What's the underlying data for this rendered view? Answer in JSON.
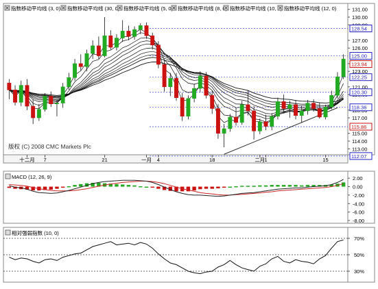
{
  "legend": [
    {
      "label": "指数移动平均线 (3, 0)",
      "color": "#000000"
    },
    {
      "label": "指数移动平均线 (30, 0)",
      "color": "#000000"
    },
    {
      "label": "指数移动平均线 (5, 0)",
      "color": "#000000"
    },
    {
      "label": "指数移动平均线 (8, 0)",
      "color": "#000000"
    },
    {
      "label": "指数移动平均线 (10, 0)",
      "color": "#000000"
    },
    {
      "label": "指数移动平均线 (12, 0)",
      "color": "#000000"
    }
  ],
  "copyright": "版权 (C) 2008 CMC Markets Plc",
  "colors": {
    "up": "#22aa22",
    "down": "#cc1111",
    "grid": "#4444ee",
    "macd_line": "#222222",
    "signal_line": "#cc2222",
    "trend": "#333333"
  },
  "chart_data": [
    {
      "type": "candlestick",
      "ylim": [
        112.5,
        131.5
      ],
      "y_ticks": [
        "113.00",
        "114.00",
        "115.00",
        "117.00",
        "118.00",
        "120.00",
        "121.00",
        "123.00",
        "124.00",
        "126.00",
        "127.00",
        "129.00",
        "130.00",
        "131.00"
      ],
      "y_tick_values": [
        113,
        114,
        115,
        117,
        118,
        120,
        121,
        123,
        124,
        126,
        127,
        129,
        130,
        131
      ],
      "price_tags": [
        {
          "label": "128.54",
          "value": 128.54,
          "color": "#2222cc"
        },
        {
          "label": "125.00",
          "value": 125.0,
          "color": "#2222cc"
        },
        {
          "label": "123.94",
          "value": 123.94,
          "color": "#cc1111"
        },
        {
          "label": "122.25",
          "value": 122.25,
          "color": "#2222cc"
        },
        {
          "label": "120.30",
          "value": 120.3,
          "color": "#2222cc"
        },
        {
          "label": "118.36",
          "value": 118.36,
          "color": "#2222cc"
        },
        {
          "label": "115.86",
          "value": 115.86,
          "color": "#cc1111"
        },
        {
          "label": "112.07",
          "value": 112.07,
          "color": "#2222cc"
        }
      ],
      "grid_levels": [
        128.54,
        125.0,
        122.25,
        120.3,
        118.36,
        115.86,
        112.07
      ],
      "x_ticks": [
        {
          "label": "十二月",
          "index": 3
        },
        {
          "label": "7",
          "index": 6
        },
        {
          "label": "21",
          "index": 16
        },
        {
          "label": "一月",
          "index": 23
        },
        {
          "label": "4",
          "index": 25
        },
        {
          "label": "18",
          "index": 34
        },
        {
          "label": "二月",
          "index": 42
        },
        {
          "label": "1",
          "index": 43
        },
        {
          "label": "15",
          "index": 53
        }
      ],
      "candles": [
        [
          121.5,
          122.0,
          119.4,
          120.6
        ],
        [
          120.6,
          121.2,
          118.6,
          119.0
        ],
        [
          119.0,
          121.8,
          118.5,
          121.2
        ],
        [
          121.2,
          122.0,
          118.0,
          118.5
        ],
        [
          118.5,
          119.4,
          116.2,
          117.0
        ],
        [
          117.0,
          118.8,
          116.6,
          118.1
        ],
        [
          118.1,
          120.2,
          117.8,
          119.8
        ],
        [
          119.8,
          120.4,
          118.4,
          118.8
        ],
        [
          118.8,
          119.3,
          117.2,
          118.9
        ],
        [
          118.9,
          121.5,
          118.3,
          121.0
        ],
        [
          121.0,
          122.8,
          120.6,
          122.2
        ],
        [
          122.2,
          124.6,
          121.8,
          124.0
        ],
        [
          124.0,
          125.2,
          123.1,
          123.6
        ],
        [
          123.6,
          125.8,
          123.0,
          125.3
        ],
        [
          125.3,
          127.0,
          124.6,
          126.3
        ],
        [
          126.3,
          127.5,
          124.6,
          125.0
        ],
        [
          125.0,
          130.0,
          124.8,
          127.6
        ],
        [
          127.6,
          128.3,
          125.8,
          126.1
        ],
        [
          126.1,
          127.8,
          125.7,
          127.3
        ],
        [
          127.3,
          129.6,
          126.8,
          128.2
        ],
        [
          128.2,
          128.9,
          127.0,
          127.5
        ],
        [
          127.5,
          128.8,
          127.1,
          128.4
        ],
        [
          128.4,
          129.2,
          127.8,
          128.9
        ],
        [
          128.9,
          129.3,
          127.2,
          127.6
        ],
        [
          127.6,
          128.0,
          125.8,
          126.4
        ],
        [
          126.4,
          126.9,
          123.4,
          123.9
        ],
        [
          123.9,
          124.5,
          120.4,
          121.0
        ],
        [
          121.0,
          122.8,
          119.8,
          122.1
        ],
        [
          122.1,
          122.8,
          119.2,
          119.6
        ],
        [
          119.6,
          120.2,
          116.6,
          117.2
        ],
        [
          117.2,
          119.9,
          116.8,
          119.5
        ],
        [
          119.5,
          121.4,
          119.0,
          120.8
        ],
        [
          120.8,
          123.0,
          120.3,
          122.4
        ],
        [
          122.4,
          122.9,
          119.5,
          119.9
        ],
        [
          119.9,
          120.5,
          117.5,
          118.2
        ],
        [
          118.2,
          118.8,
          114.3,
          115.0
        ],
        [
          115.0,
          116.2,
          113.2,
          115.6
        ],
        [
          115.6,
          117.5,
          115.2,
          117.1
        ],
        [
          117.1,
          118.3,
          116.0,
          116.4
        ],
        [
          116.4,
          119.2,
          116.1,
          118.7
        ],
        [
          118.7,
          120.5,
          117.3,
          117.9
        ],
        [
          117.9,
          118.5,
          114.2,
          115.3
        ],
        [
          115.3,
          116.9,
          114.9,
          116.5
        ],
        [
          116.5,
          117.4,
          115.4,
          115.9
        ],
        [
          115.9,
          117.6,
          115.4,
          117.2
        ],
        [
          117.2,
          119.6,
          116.8,
          119.1
        ],
        [
          119.1,
          120.0,
          117.6,
          118.2
        ],
        [
          118.2,
          119.2,
          117.0,
          118.7
        ],
        [
          118.7,
          119.3,
          116.8,
          117.3
        ],
        [
          117.3,
          118.6,
          116.4,
          117.9
        ],
        [
          117.9,
          119.3,
          117.4,
          118.9
        ],
        [
          118.9,
          119.4,
          117.8,
          118.2
        ],
        [
          118.2,
          118.9,
          116.9,
          117.1
        ],
        [
          117.1,
          118.7,
          116.8,
          118.4
        ],
        [
          118.4,
          120.5,
          118.1,
          119.9
        ],
        [
          119.9,
          122.9,
          119.5,
          122.3
        ],
        [
          122.3,
          125.2,
          122.0,
          124.6
        ]
      ],
      "trendline": {
        "from_index": 36,
        "from_value": 112.3,
        "to_index": 55,
        "to_value": 118.3
      }
    },
    {
      "type": "macd",
      "legend": "MACD (12, 26, 9)",
      "ylim": [
        -8.0,
        3.0
      ],
      "y_ticks": [
        "2.00",
        "0.00",
        "-2.00",
        "-4.00",
        "-6.00",
        "-8.00"
      ],
      "y_tick_values": [
        2,
        0,
        -2,
        -4,
        -6,
        -8
      ],
      "macd": [
        0.2,
        -0.1,
        -0.3,
        -0.6,
        -1.1,
        -1.4,
        -1.5,
        -1.6,
        -1.5,
        -1.2,
        -0.9,
        -0.5,
        -0.1,
        0.3,
        0.7,
        1.0,
        1.2,
        1.3,
        1.4,
        1.5,
        1.5,
        1.5,
        1.4,
        1.3,
        1.0,
        0.5,
        -0.1,
        -0.7,
        -1.2,
        -1.6,
        -1.9,
        -2.0,
        -2.0,
        -2.1,
        -2.2,
        -2.3,
        -2.2,
        -2.0,
        -1.8,
        -1.6,
        -1.5,
        -1.4,
        -1.2,
        -1.0,
        -0.8,
        -0.6,
        -0.5,
        -0.4,
        -0.3,
        -0.3,
        -0.1,
        0.0,
        0.1,
        0.2,
        0.5,
        1.0,
        1.7
      ],
      "signal": [
        0.5,
        0.4,
        0.3,
        0.1,
        -0.2,
        -0.5,
        -0.7,
        -0.9,
        -1.0,
        -1.0,
        -1.0,
        -0.9,
        -0.7,
        -0.5,
        -0.2,
        0.1,
        0.4,
        0.6,
        0.8,
        1.0,
        1.1,
        1.2,
        1.3,
        1.3,
        1.2,
        1.0,
        0.7,
        0.3,
        -0.1,
        -0.5,
        -0.8,
        -1.1,
        -1.4,
        -1.6,
        -1.7,
        -1.9,
        -2.0,
        -2.0,
        -1.9,
        -1.8,
        -1.7,
        -1.6,
        -1.5,
        -1.3,
        -1.2,
        -1.0,
        -0.9,
        -0.8,
        -0.7,
        -0.6,
        -0.5,
        -0.4,
        -0.3,
        -0.2,
        0.0,
        0.3,
        0.7
      ]
    },
    {
      "type": "line",
      "legend": "相对强弱指数 (10, 0)",
      "ylim": [
        20,
        80
      ],
      "y_ticks": [
        "70%",
        "50%",
        "30%"
      ],
      "y_tick_values": [
        70,
        50,
        30
      ],
      "values": [
        47,
        44,
        46,
        45,
        42,
        40,
        44,
        45,
        43,
        47,
        49,
        51,
        52,
        56,
        60,
        62,
        64,
        66,
        62,
        63,
        64,
        62,
        65,
        63,
        58,
        51,
        45,
        40,
        38,
        34,
        30,
        28,
        27,
        29,
        30,
        35,
        38,
        43,
        38,
        34,
        32,
        30,
        36,
        39,
        45,
        48,
        42,
        40,
        44,
        42,
        41,
        39,
        45,
        49,
        58,
        66,
        68
      ]
    }
  ]
}
